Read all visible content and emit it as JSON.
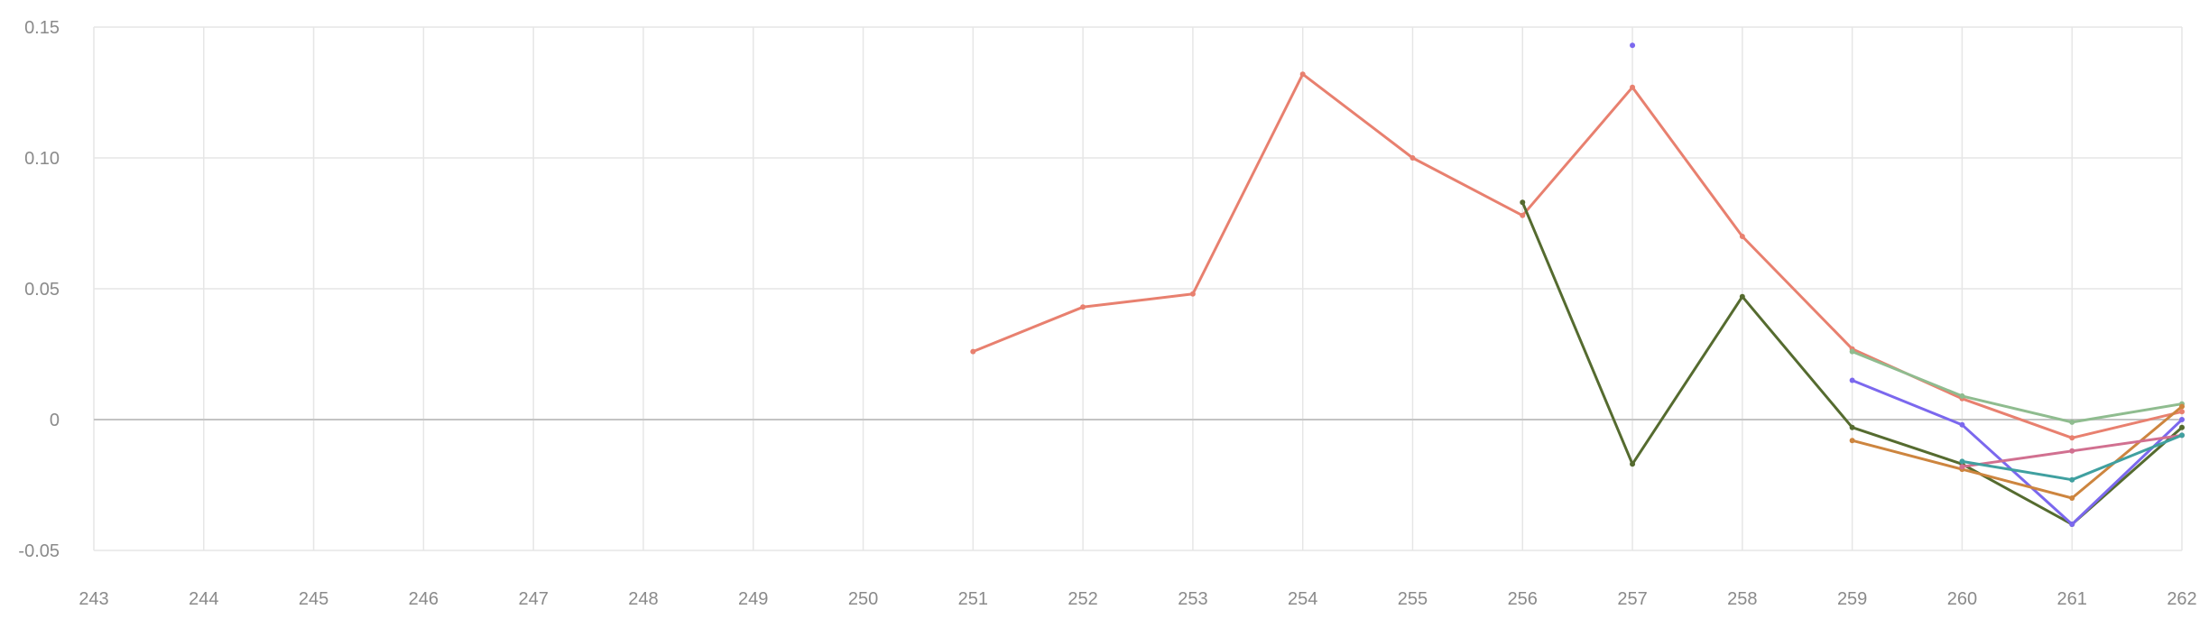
{
  "chart_data": {
    "type": "line",
    "title": "",
    "xlabel": "",
    "ylabel": "",
    "x_ticks": [
      "243",
      "244",
      "245",
      "246",
      "247",
      "248",
      "249",
      "250",
      "251",
      "252",
      "253",
      "254",
      "255",
      "256",
      "257",
      "258",
      "259",
      "260",
      "261",
      "262"
    ],
    "y_ticks": [
      "0.15",
      "0.10",
      "0.05",
      "0",
      "-0.05"
    ],
    "xlim": [
      243,
      262
    ],
    "ylim": [
      -0.05,
      0.15
    ],
    "grid": true,
    "legend": "none",
    "series": [
      {
        "color": "#e8806f",
        "points": [
          [
            251,
            0.026
          ],
          [
            252,
            0.043
          ],
          [
            253,
            0.048
          ],
          [
            254,
            0.132
          ],
          [
            255,
            0.1
          ],
          [
            256,
            0.078
          ],
          [
            257,
            0.127
          ],
          [
            258,
            0.07
          ],
          [
            259,
            0.027
          ],
          [
            260,
            0.008
          ],
          [
            261,
            -0.007
          ],
          [
            262,
            0.003
          ]
        ]
      },
      {
        "color": "#556b2f",
        "points": [
          [
            256,
            0.083
          ],
          [
            257,
            -0.017
          ],
          [
            258,
            0.047
          ],
          [
            259,
            -0.003
          ],
          [
            260,
            -0.017
          ],
          [
            261,
            -0.04
          ],
          [
            262,
            -0.003
          ]
        ]
      },
      {
        "color": "#7b68ee",
        "points": [
          [
            257,
            0.143
          ]
        ]
      },
      {
        "color": "#7b68ee",
        "points": [
          [
            259,
            0.015
          ],
          [
            260,
            -0.002
          ],
          [
            261,
            -0.04
          ],
          [
            262,
            0.0
          ]
        ]
      },
      {
        "color": "#8fbc8f",
        "points": [
          [
            259,
            0.026
          ],
          [
            260,
            0.009
          ],
          [
            261,
            -0.001
          ],
          [
            262,
            0.006
          ]
        ]
      },
      {
        "color": "#cd853f",
        "points": [
          [
            259,
            -0.008
          ],
          [
            260,
            -0.019
          ],
          [
            261,
            -0.03
          ],
          [
            262,
            0.005
          ]
        ]
      },
      {
        "color": "#d17090",
        "points": [
          [
            260,
            -0.018
          ],
          [
            261,
            -0.012
          ],
          [
            262,
            -0.006
          ]
        ]
      },
      {
        "color": "#40a0a0",
        "points": [
          [
            260,
            -0.016
          ],
          [
            261,
            -0.023
          ],
          [
            262,
            -0.006
          ]
        ]
      }
    ]
  }
}
